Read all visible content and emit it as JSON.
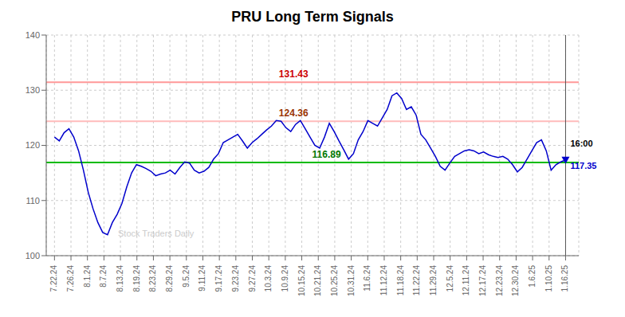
{
  "chart_data": {
    "type": "line",
    "title": "PRU Long Term Signals",
    "color": "#0000cc",
    "grid": true,
    "xlim": [
      -0.5,
      31.8
    ],
    "xticks": [
      {
        "value": 0,
        "label": "7.22.24"
      },
      {
        "value": 1,
        "label": "7.26.24"
      },
      {
        "value": 2,
        "label": "8.1.24"
      },
      {
        "value": 3,
        "label": "8.7.24"
      },
      {
        "value": 4,
        "label": "8.13.24"
      },
      {
        "value": 5,
        "label": "8.19.24"
      },
      {
        "value": 6,
        "label": "8.23.24"
      },
      {
        "value": 7,
        "label": "8.29.24"
      },
      {
        "value": 8,
        "label": "9.5.24"
      },
      {
        "value": 9,
        "label": "9.11.24"
      },
      {
        "value": 10,
        "label": "9.17.24"
      },
      {
        "value": 11,
        "label": "9.23.24"
      },
      {
        "value": 12,
        "label": "9.27.24"
      },
      {
        "value": 13,
        "label": "10.3.24"
      },
      {
        "value": 14,
        "label": "10.9.24"
      },
      {
        "value": 15,
        "label": "10.15.24"
      },
      {
        "value": 16,
        "label": "10.21.24"
      },
      {
        "value": 17,
        "label": "10.25.24"
      },
      {
        "value": 18,
        "label": "10.31.24"
      },
      {
        "value": 19,
        "label": "11.6.24"
      },
      {
        "value": 20,
        "label": "11.12.24"
      },
      {
        "value": 21,
        "label": "11.18.24"
      },
      {
        "value": 22,
        "label": "11.22.24"
      },
      {
        "value": 23,
        "label": "11.29.24"
      },
      {
        "value": 24,
        "label": "12.5.24"
      },
      {
        "value": 25,
        "label": "12.11.24"
      },
      {
        "value": 26,
        "label": "12.17.24"
      },
      {
        "value": 27,
        "label": "12.23.24"
      },
      {
        "value": 28,
        "label": "12.30.24"
      },
      {
        "value": 29,
        "label": "1.6.25"
      },
      {
        "value": 30,
        "label": "1.10.25"
      },
      {
        "value": 31,
        "label": "1.16.25"
      }
    ],
    "ylim": [
      100,
      140
    ],
    "yticks": [
      100,
      110,
      120,
      130,
      140
    ],
    "values": [
      121.5,
      120.8,
      122.3,
      123.0,
      121.5,
      119.0,
      115.5,
      111.5,
      108.5,
      106.0,
      104.2,
      103.8,
      106.0,
      107.5,
      109.5,
      112.5,
      115.0,
      116.5,
      116.2,
      115.8,
      115.3,
      114.5,
      114.8,
      115.0,
      115.5,
      114.8,
      116.0,
      117.0,
      116.8,
      115.5,
      115.0,
      115.3,
      116.0,
      117.5,
      118.5,
      120.5,
      121.0,
      121.5,
      122.0,
      120.8,
      119.5,
      120.5,
      121.2,
      122.0,
      122.8,
      123.5,
      124.5,
      124.36,
      123.2,
      122.5,
      123.8,
      124.5,
      123.0,
      121.5,
      120.0,
      119.5,
      121.5,
      124.0,
      122.5,
      120.8,
      119.2,
      117.5,
      118.5,
      121.0,
      122.5,
      124.5,
      124.0,
      123.5,
      125.0,
      126.5,
      129.0,
      129.5,
      128.5,
      126.5,
      127.0,
      125.5,
      122.0,
      121.0,
      119.5,
      118.0,
      116.2,
      115.5,
      116.8,
      118.0,
      118.5,
      119.0,
      119.2,
      119.0,
      118.5,
      118.8,
      118.3,
      118.0,
      117.8,
      118.0,
      117.5,
      116.5,
      115.2,
      116.0,
      117.5,
      119.0,
      120.5,
      121.0,
      119.0,
      115.5,
      116.5,
      117.0,
      117.35
    ],
    "reference_lines": [
      {
        "value": 131.43,
        "color": "#ff9999",
        "text_color": "#cc0000",
        "label_x": 14.5
      },
      {
        "value": 124.36,
        "color": "#ffbbbb",
        "text_color": "#993300",
        "label_x": 14.5
      },
      {
        "value": 116.89,
        "color": "#00bb00",
        "text_color": "#007700",
        "label_x": 16.5
      }
    ],
    "vline_x": 31,
    "end_label": {
      "time": "16:00",
      "value": 117.35,
      "marker": "triangle_down"
    },
    "annotations": [
      {
        "text": "Stock Traders Daily"
      }
    ]
  }
}
